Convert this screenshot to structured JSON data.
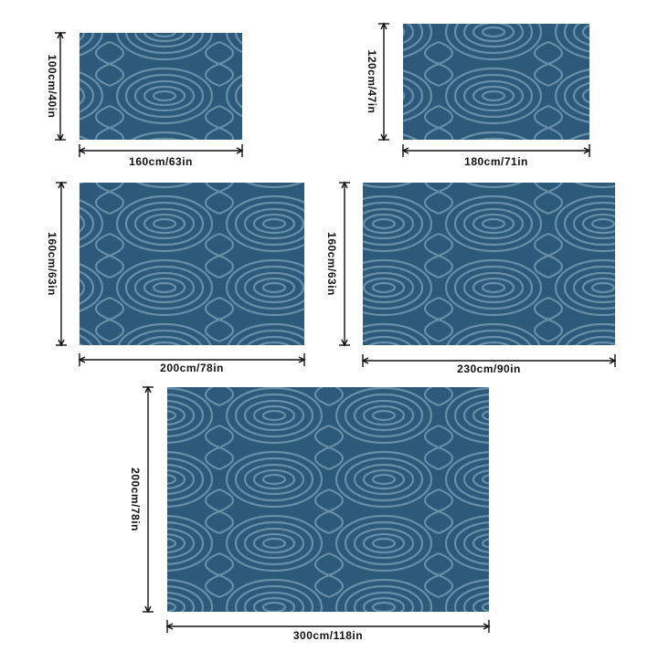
{
  "rugs": [
    {
      "height": "100cm/40in",
      "width": "160cm/63in"
    },
    {
      "height": "120cm/47in",
      "width": "180cm/71in"
    },
    {
      "height": "160cm/63in",
      "width": "200cm/78in"
    },
    {
      "height": "160cm/63in",
      "width": "230cm/90in"
    },
    {
      "height": "200cm/78in",
      "width": "300cm/118in"
    }
  ]
}
